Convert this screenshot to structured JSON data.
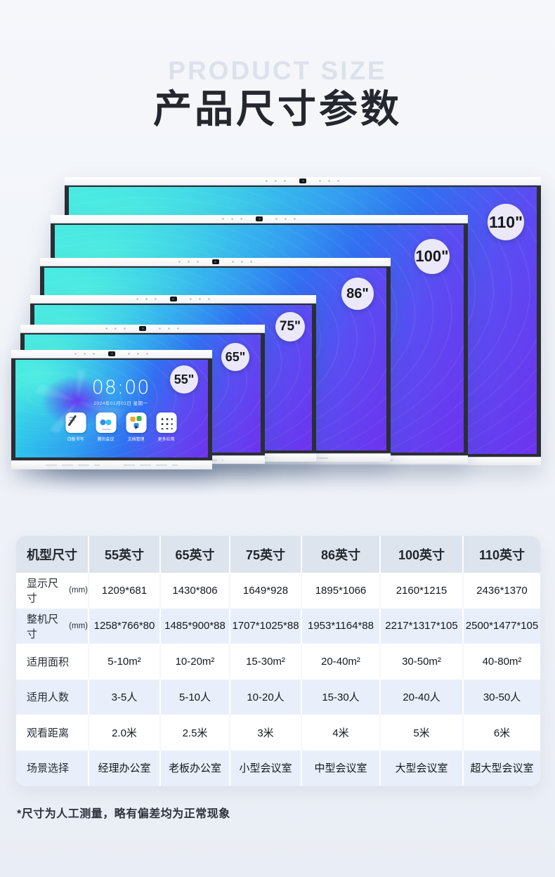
{
  "header": {
    "eyebrow": "PRODUCT SIZE",
    "title": "产品尺寸参数"
  },
  "display_stack": {
    "panels": [
      {
        "size_label": "110\""
      },
      {
        "size_label": "100\""
      },
      {
        "size_label": "86\""
      },
      {
        "size_label": "75\""
      },
      {
        "size_label": "65\""
      },
      {
        "size_label": "55\""
      }
    ]
  },
  "homescreen": {
    "clock": "08:00",
    "date": "2024年01月01日 星期一",
    "apps": [
      {
        "label": "白板书写"
      },
      {
        "label": "腾讯会议"
      },
      {
        "label": "文档管理"
      },
      {
        "label": "更多应用"
      }
    ]
  },
  "table": {
    "col_headers": [
      "机型尺寸",
      "55英寸",
      "65英寸",
      "75英寸",
      "86英寸",
      "100英寸",
      "110英寸"
    ],
    "rows": [
      {
        "label": "显示尺寸",
        "label_suffix": "(mm)",
        "values": [
          "1209*681",
          "1430*806",
          "1649*928",
          "1895*1066",
          "2160*1215",
          "2436*1370"
        ]
      },
      {
        "label": "整机尺寸",
        "label_suffix": "(mm)",
        "values": [
          "1258*766*80",
          "1485*900*88",
          "1707*1025*88",
          "1953*1164*88",
          "2217*1317*105",
          "2500*1477*105"
        ]
      },
      {
        "label": "适用面积",
        "values": [
          "5-10m²",
          "10-20m²",
          "15-30m²",
          "20-40m²",
          "30-50m²",
          "40-80m²"
        ]
      },
      {
        "label": "适用人数",
        "values": [
          "3-5人",
          "5-10人",
          "10-20人",
          "15-30人",
          "20-40人",
          "30-50人"
        ]
      },
      {
        "label": "观看距离",
        "values": [
          "2.0米",
          "2.5米",
          "3米",
          "4米",
          "5米",
          "6米"
        ]
      },
      {
        "label": "场景选择",
        "values": [
          "经理办公室",
          "老板办公室",
          "小型会议室",
          "中型会议室",
          "大型会议室",
          "超大型会议室"
        ]
      }
    ]
  },
  "footnote": "*尺寸为人工测量，略有偏差均为正常现象",
  "colors": {
    "accent_cyan": "#3ce9e0",
    "accent_blue": "#2f9df0",
    "accent_purple": "#6d33ee",
    "badge_bg": "#ebe8f9",
    "header_row_bg": "#dee4ed",
    "tint_row_bg": "#e9effa"
  }
}
